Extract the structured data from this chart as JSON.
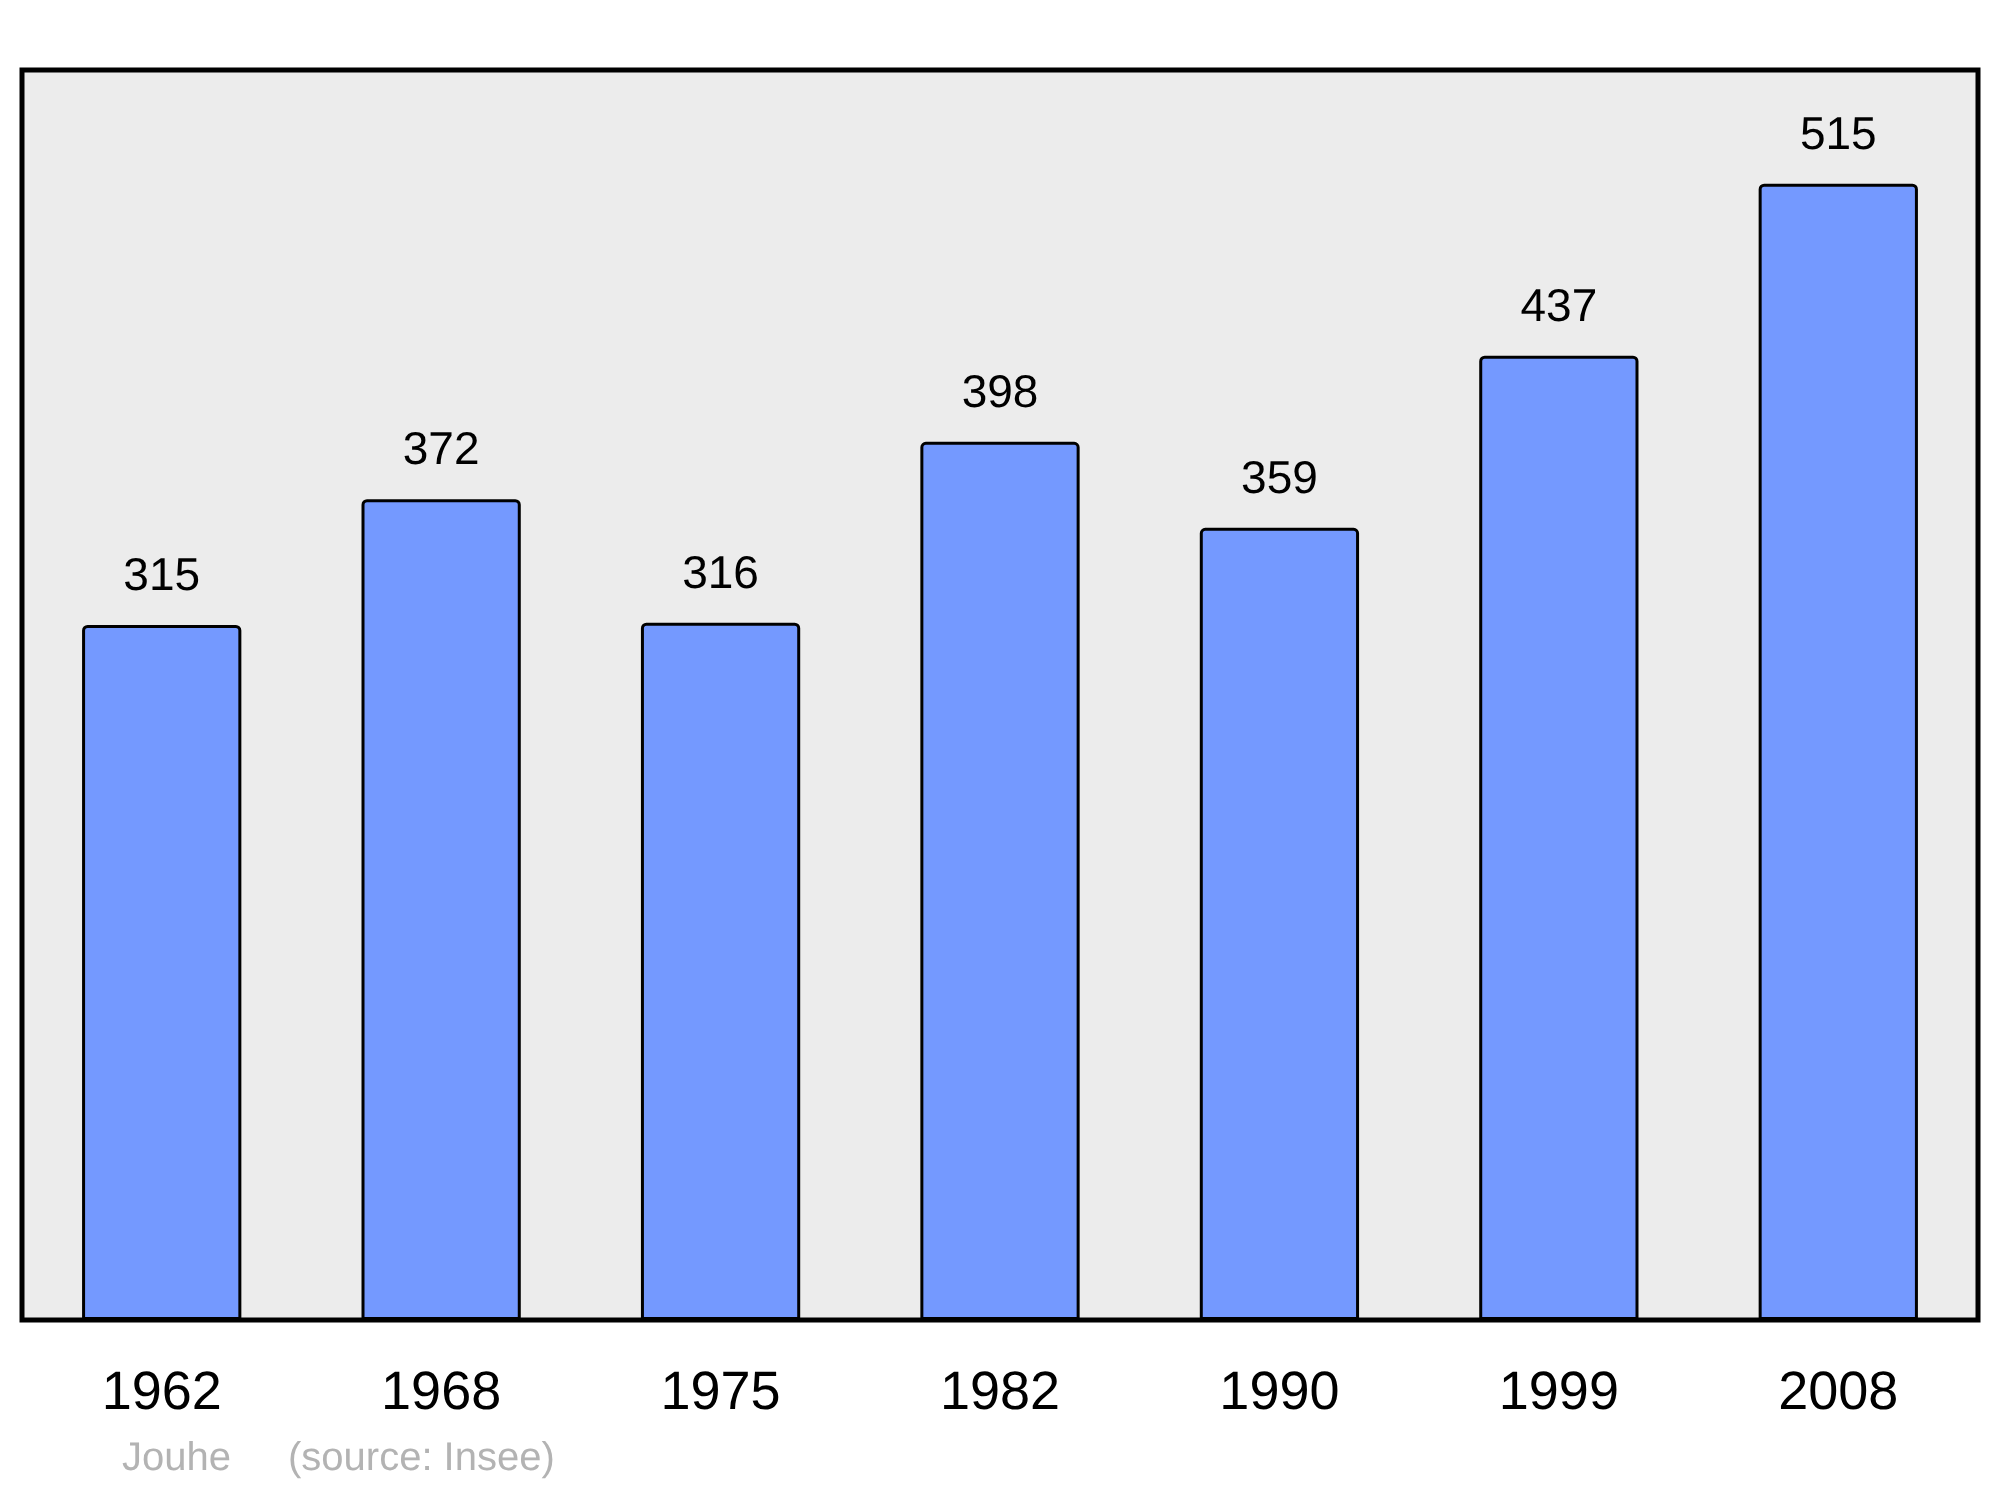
{
  "chart_data": {
    "type": "bar",
    "categories": [
      "1962",
      "1968",
      "1975",
      "1982",
      "1990",
      "1999",
      "2008"
    ],
    "values": [
      315,
      372,
      316,
      398,
      359,
      437,
      515
    ],
    "color": "#7499ff",
    "data_labels": true,
    "annotations": [
      "Jouhe",
      "(source: Insee)"
    ]
  }
}
